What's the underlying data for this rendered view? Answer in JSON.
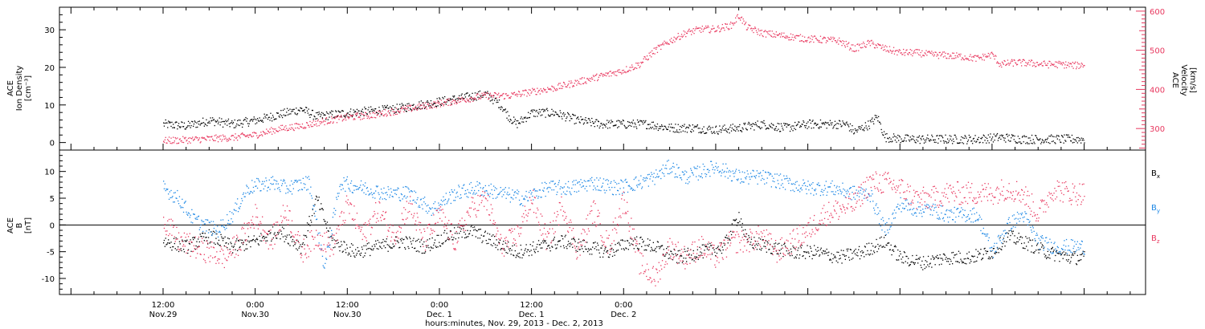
{
  "chart_data": [
    {
      "type": "scatter",
      "panel": "top",
      "left_axis": {
        "label_lines": [
          "ACE",
          "Ion Density",
          "[cm⁻³]"
        ],
        "ticks": [
          0,
          10,
          20,
          30
        ],
        "range": [
          -2,
          36
        ]
      },
      "right_axis": {
        "label_lines": [
          "ACE",
          "Velocity",
          "[km/s]"
        ],
        "ticks": [
          300,
          400,
          500,
          600
        ],
        "range": [
          245,
          610
        ],
        "color": "#e8385f"
      },
      "series": [
        {
          "color": "#000000",
          "axis": "left",
          "points": [
            [
              0,
              5
            ],
            [
              3,
              4.5
            ],
            [
              6,
              6
            ],
            [
              9,
              5
            ],
            [
              12,
              6
            ],
            [
              15,
              7.5
            ],
            [
              18,
              9
            ],
            [
              20,
              7
            ],
            [
              24,
              8
            ],
            [
              27,
              8.5
            ],
            [
              30,
              9
            ],
            [
              33,
              10
            ],
            [
              36,
              11
            ],
            [
              39,
              12
            ],
            [
              42,
              13
            ],
            [
              44,
              10
            ],
            [
              45,
              7
            ],
            [
              46,
              5
            ],
            [
              48,
              8
            ],
            [
              51,
              8
            ],
            [
              54,
              6
            ],
            [
              57,
              5
            ],
            [
              60,
              5
            ],
            [
              63,
              5
            ],
            [
              66,
              4
            ],
            [
              69,
              4
            ],
            [
              72,
              3.5
            ],
            [
              75,
              4
            ],
            [
              78,
              5
            ],
            [
              81,
              4
            ],
            [
              84,
              5
            ],
            [
              87,
              5
            ],
            [
              89,
              5
            ],
            [
              90,
              3
            ],
            [
              92,
              5
            ],
            [
              93,
              7
            ],
            [
              94,
              1.5
            ],
            [
              97,
              1
            ],
            [
              100,
              1
            ],
            [
              103,
              1
            ],
            [
              106,
              1
            ],
            [
              109,
              1.5
            ],
            [
              112,
              1
            ],
            [
              115,
              1
            ],
            [
              118,
              1
            ],
            [
              120,
              1
            ]
          ]
        },
        {
          "color": "#e8385f",
          "axis": "right",
          "points": [
            [
              0,
              270
            ],
            [
              3,
              272
            ],
            [
              6,
              275
            ],
            [
              9,
              278
            ],
            [
              12,
              285
            ],
            [
              15,
              300
            ],
            [
              18,
              308
            ],
            [
              21,
              320
            ],
            [
              24,
              330
            ],
            [
              27,
              335
            ],
            [
              30,
              345
            ],
            [
              33,
              355
            ],
            [
              36,
              365
            ],
            [
              39,
              375
            ],
            [
              42,
              385
            ],
            [
              45,
              385
            ],
            [
              48,
              395
            ],
            [
              51,
              405
            ],
            [
              54,
              420
            ],
            [
              57,
              435
            ],
            [
              60,
              450
            ],
            [
              62,
              465
            ],
            [
              64,
              500
            ],
            [
              66,
              525
            ],
            [
              68,
              545
            ],
            [
              70,
              555
            ],
            [
              72,
              555
            ],
            [
              74,
              565
            ],
            [
              75,
              590
            ],
            [
              76,
              560
            ],
            [
              78,
              545
            ],
            [
              80,
              540
            ],
            [
              82,
              535
            ],
            [
              84,
              530
            ],
            [
              86,
              528
            ],
            [
              88,
              525
            ],
            [
              90,
              505
            ],
            [
              92,
              520
            ],
            [
              94,
              505
            ],
            [
              96,
              495
            ],
            [
              98,
              495
            ],
            [
              100,
              490
            ],
            [
              102,
              488
            ],
            [
              104,
              485
            ],
            [
              106,
              480
            ],
            [
              108,
              490
            ],
            [
              109,
              465
            ],
            [
              111,
              470
            ],
            [
              113,
              468
            ],
            [
              115,
              465
            ],
            [
              117,
              465
            ],
            [
              119,
              462
            ],
            [
              120,
              465
            ]
          ]
        }
      ]
    },
    {
      "type": "scatter",
      "panel": "bottom",
      "left_axis": {
        "label_lines": [
          "ACE",
          "B",
          "[nT]"
        ],
        "ticks": [
          -10,
          -5,
          0,
          5,
          10
        ],
        "range": [
          -13,
          14
        ]
      },
      "legend": [
        {
          "label": "B",
          "sub": "x",
          "color": "#000000"
        },
        {
          "label": "B",
          "sub": "y",
          "color": "#1e88e5"
        },
        {
          "label": "B",
          "sub": "z",
          "color": "#e8385f"
        }
      ],
      "series": [
        {
          "color": "#000000",
          "points": [
            [
              0,
              -3
            ],
            [
              3,
              -4
            ],
            [
              6,
              -2
            ],
            [
              9,
              -4
            ],
            [
              12,
              -3
            ],
            [
              15,
              -1
            ],
            [
              18,
              -4
            ],
            [
              20,
              5
            ],
            [
              22,
              -3
            ],
            [
              25,
              -5
            ],
            [
              28,
              -4
            ],
            [
              31,
              -3
            ],
            [
              34,
              -4
            ],
            [
              37,
              -2
            ],
            [
              40,
              -1
            ],
            [
              43,
              -3
            ],
            [
              46,
              -5
            ],
            [
              49,
              -4
            ],
            [
              52,
              -3
            ],
            [
              55,
              -4
            ],
            [
              58,
              -5
            ],
            [
              61,
              -3
            ],
            [
              64,
              -4
            ],
            [
              67,
              -6
            ],
            [
              70,
              -5
            ],
            [
              73,
              -4
            ],
            [
              75,
              2
            ],
            [
              76,
              -3
            ],
            [
              79,
              -4
            ],
            [
              82,
              -5
            ],
            [
              85,
              -5
            ],
            [
              88,
              -6
            ],
            [
              91,
              -5
            ],
            [
              94,
              -3
            ],
            [
              96,
              -6
            ],
            [
              99,
              -7
            ],
            [
              102,
              -6
            ],
            [
              105,
              -6
            ],
            [
              108,
              -5
            ],
            [
              110,
              -2
            ],
            [
              112,
              -3
            ],
            [
              115,
              -5
            ],
            [
              118,
              -6
            ],
            [
              120,
              -6
            ]
          ]
        },
        {
          "color": "#1e88e5",
          "points": [
            [
              0,
              7
            ],
            [
              2,
              5
            ],
            [
              4,
              1
            ],
            [
              7,
              -1
            ],
            [
              9,
              2
            ],
            [
              11,
              7
            ],
            [
              14,
              8
            ],
            [
              16,
              7
            ],
            [
              19,
              8
            ],
            [
              21,
              -8
            ],
            [
              23,
              8
            ],
            [
              26,
              7
            ],
            [
              29,
              6
            ],
            [
              32,
              6
            ],
            [
              35,
              3
            ],
            [
              38,
              6
            ],
            [
              41,
              7
            ],
            [
              44,
              6
            ],
            [
              47,
              5
            ],
            [
              50,
              7
            ],
            [
              53,
              7
            ],
            [
              56,
              8
            ],
            [
              59,
              7
            ],
            [
              62,
              8
            ],
            [
              64,
              9
            ],
            [
              66,
              11
            ],
            [
              68,
              9
            ],
            [
              70,
              10
            ],
            [
              72,
              11
            ],
            [
              75,
              9
            ],
            [
              78,
              9
            ],
            [
              81,
              8
            ],
            [
              84,
              7
            ],
            [
              87,
              7
            ],
            [
              90,
              6
            ],
            [
              92,
              6
            ],
            [
              94,
              -1
            ],
            [
              96,
              4
            ],
            [
              98,
              3
            ],
            [
              100,
              3
            ],
            [
              102,
              2
            ],
            [
              104,
              2
            ],
            [
              106,
              2
            ],
            [
              108,
              -5
            ],
            [
              110,
              0
            ],
            [
              112,
              2
            ],
            [
              114,
              -3
            ],
            [
              116,
              -4
            ],
            [
              118,
              -4
            ],
            [
              120,
              -4
            ]
          ]
        },
        {
          "color": "#e8385f",
          "points": [
            [
              0,
              1
            ],
            [
              2,
              -3
            ],
            [
              4,
              -4
            ],
            [
              6,
              -5
            ],
            [
              8,
              -6
            ],
            [
              10,
              -3
            ],
            [
              12,
              2
            ],
            [
              14,
              -3
            ],
            [
              16,
              3
            ],
            [
              18,
              -5
            ],
            [
              20,
              -2
            ],
            [
              22,
              -4
            ],
            [
              24,
              4
            ],
            [
              26,
              -2
            ],
            [
              28,
              3
            ],
            [
              30,
              -2
            ],
            [
              32,
              4
            ],
            [
              34,
              -3
            ],
            [
              36,
              2
            ],
            [
              38,
              -3
            ],
            [
              40,
              3
            ],
            [
              42,
              5
            ],
            [
              44,
              -4
            ],
            [
              46,
              -2
            ],
            [
              48,
              5
            ],
            [
              50,
              -3
            ],
            [
              52,
              4
            ],
            [
              54,
              -5
            ],
            [
              56,
              3
            ],
            [
              58,
              -4
            ],
            [
              60,
              5
            ],
            [
              62,
              -7
            ],
            [
              64,
              -10
            ],
            [
              66,
              -4
            ],
            [
              68,
              -6
            ],
            [
              70,
              -4
            ],
            [
              72,
              -6
            ],
            [
              74,
              -3
            ],
            [
              76,
              -3
            ],
            [
              78,
              -2
            ],
            [
              80,
              -5
            ],
            [
              82,
              -3
            ],
            [
              84,
              -1
            ],
            [
              86,
              2
            ],
            [
              88,
              3
            ],
            [
              90,
              4
            ],
            [
              92,
              8
            ],
            [
              94,
              8
            ],
            [
              96,
              7
            ],
            [
              98,
              5
            ],
            [
              100,
              5
            ],
            [
              102,
              6
            ],
            [
              104,
              6
            ],
            [
              106,
              6
            ],
            [
              108,
              6
            ],
            [
              110,
              7
            ],
            [
              112,
              6
            ],
            [
              114,
              2
            ],
            [
              116,
              7
            ],
            [
              118,
              6
            ],
            [
              120,
              6
            ]
          ]
        }
      ]
    }
  ],
  "x_axis": {
    "hours_range": [
      -13.5,
      128
    ],
    "ticks": [
      {
        "hours": 0,
        "time": "12:00",
        "date": "Nov.29"
      },
      {
        "hours": 12,
        "time": "0:00",
        "date": "Nov.30"
      },
      {
        "hours": 24,
        "time": "12:00",
        "date": "Nov.30"
      },
      {
        "hours": 36,
        "time": "0:00",
        "date": "Dec. 1"
      },
      {
        "hours": 48,
        "time": "12:00",
        "date": "Dec. 1"
      },
      {
        "hours": 60,
        "time": "0:00",
        "date": "Dec. 2"
      }
    ],
    "xlabel": "hours:minutes, Nov. 29, 2013 - Dec. 2, 2013"
  }
}
